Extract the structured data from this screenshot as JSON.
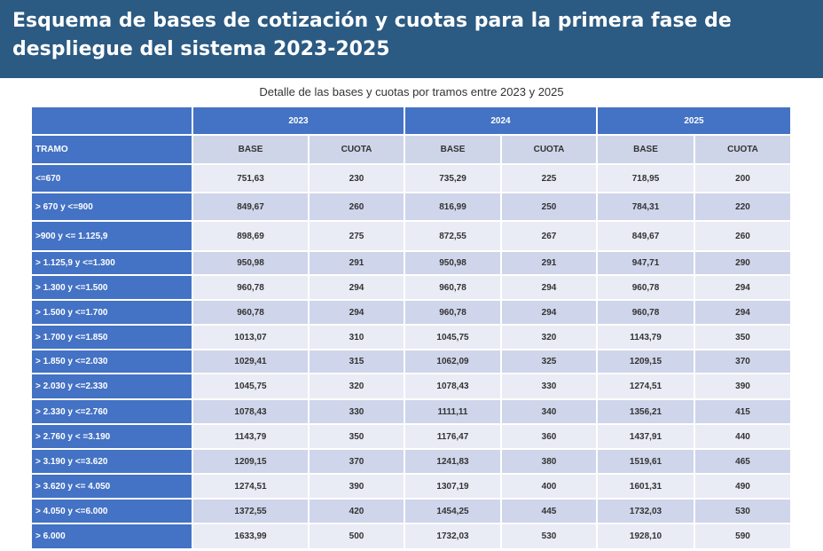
{
  "title": "Esquema de bases de cotización y cuotas para la primera fase de despliegue del sistema 2023-2025",
  "subtitle": "Detalle de las bases y cuotas por tramos entre 2023 y 2025",
  "table": {
    "years": [
      "2023",
      "2024",
      "2025"
    ],
    "tramo_header": "TRAMO",
    "sub_headers": [
      "BASE",
      "CUOTA",
      "BASE",
      "CUOTA",
      "BASE",
      "CUOTA"
    ],
    "rows": [
      [
        "<=670",
        "751,63",
        "230",
        "735,29",
        "225",
        "718,95",
        "200"
      ],
      [
        "> 670 y <=900",
        "849,67",
        "260",
        "816,99",
        "250",
        "784,31",
        "220"
      ],
      [
        ">900 y <= 1.125,9",
        "898,69",
        "275",
        "872,55",
        "267",
        "849,67",
        "260"
      ],
      [
        "> 1.125,9 y <=1.300",
        "950,98",
        "291",
        "950,98",
        "291",
        "947,71",
        "290"
      ],
      [
        "> 1.300 y <=1.500",
        "960,78",
        "294",
        "960,78",
        "294",
        "960,78",
        "294"
      ],
      [
        "> 1.500 y <=1.700",
        "960,78",
        "294",
        "960,78",
        "294",
        "960,78",
        "294"
      ],
      [
        "> 1.700 y <=1.850",
        "1013,07",
        "310",
        "1045,75",
        "320",
        "1143,79",
        "350"
      ],
      [
        "> 1.850 y <=2.030",
        "1029,41",
        "315",
        "1062,09",
        "325",
        "1209,15",
        "370"
      ],
      [
        "> 2.030 y <=2.330",
        "1045,75",
        "320",
        "1078,43",
        "330",
        "1274,51",
        "390"
      ],
      [
        "> 2.330 y <=2.760",
        "1078,43",
        "330",
        "1111,11",
        "340",
        "1356,21",
        "415"
      ],
      [
        "> 2.760 y < =3.190",
        "1143,79",
        "350",
        "1176,47",
        "360",
        "1437,91",
        "440"
      ],
      [
        "> 3.190 y <=3.620",
        "1209,15",
        "370",
        "1241,83",
        "380",
        "1519,61",
        "465"
      ],
      [
        "> 3.620 y <= 4.050",
        "1274,51",
        "390",
        "1307,19",
        "400",
        "1601,31",
        "490"
      ],
      [
        "> 4.050 y <=6.000",
        "1372,55",
        "420",
        "1454,25",
        "445",
        "1732,03",
        "530"
      ],
      [
        "> 6.000",
        "1633,99",
        "500",
        "1732,03",
        "530",
        "1928,10",
        "590"
      ]
    ]
  }
}
